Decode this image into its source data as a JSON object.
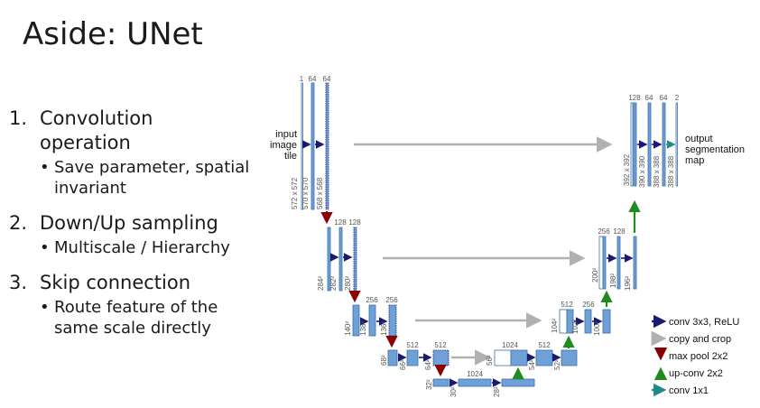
{
  "slide": {
    "title": "Aside: UNet",
    "items": [
      {
        "num": "1.",
        "text": "Convolution operation",
        "line1": "Convolution",
        "line2": "operation",
        "sub": [
          {
            "bullet": "•",
            "line1": "Save parameter, spatial",
            "line2": "invariant"
          }
        ]
      },
      {
        "num": "2.",
        "text": "Down/Up sampling",
        "sub": [
          {
            "bullet": "•",
            "line1": "Multiscale / Hierarchy"
          }
        ]
      },
      {
        "num": "3.",
        "text": "Skip connection",
        "sub": [
          {
            "bullet": "•",
            "line1": "Route feature of the",
            "line2": "same scale directly"
          }
        ]
      }
    ]
  },
  "diagram": {
    "input_label": [
      "input",
      "image",
      "tile"
    ],
    "output_label": [
      "output",
      "segmentation",
      "map"
    ],
    "channels": {
      "l1_enc": [
        "1",
        "64",
        "64"
      ],
      "l2_enc": [
        "128",
        "128"
      ],
      "l3_enc": [
        "256",
        "256"
      ],
      "l4_enc": [
        "512",
        "512"
      ],
      "l5": [
        "1024"
      ],
      "l4_dec": [
        "1024",
        "512"
      ],
      "l3_dec": [
        "512",
        "256"
      ],
      "l2_dec": [
        "256",
        "128"
      ],
      "l1_dec": [
        "128",
        "64",
        "64",
        "2"
      ]
    },
    "sizes": {
      "l1_enc": [
        "572 x 572",
        "570 x 570",
        "568 x 568"
      ],
      "l2_enc": [
        "284²",
        "282²",
        "280²"
      ],
      "l3_enc": [
        "140²",
        "138²",
        "136²"
      ],
      "l4_enc": [
        "68²",
        "66²",
        "64²"
      ],
      "l5": [
        "32²",
        "30²",
        "28²"
      ],
      "l4_dec": [
        "56²",
        "54²",
        "52²"
      ],
      "l3_dec": [
        "104²",
        "102²",
        "100²"
      ],
      "l2_dec": [
        "200²",
        "198²",
        "196²"
      ],
      "l1_dec": [
        "392 x 392",
        "390 x 390",
        "388 x 388",
        "388 x 388"
      ]
    },
    "legend": [
      {
        "label": "conv 3x3, ReLU",
        "color": "#1a1a6e",
        "kind": "right"
      },
      {
        "label": "copy and crop",
        "color": "#b0b0b0",
        "kind": "right"
      },
      {
        "label": "max pool 2x2",
        "color": "#8b0000",
        "kind": "down"
      },
      {
        "label": "up-conv 2x2",
        "color": "#1e8c1e",
        "kind": "up"
      },
      {
        "label": "conv 1x1",
        "color": "#1f8a8a",
        "kind": "right"
      }
    ],
    "colors": {
      "block": "#6fa0d8",
      "block_dark": "#3d6fa8",
      "conv": "#1a1a6e",
      "copy": "#b0b0b0",
      "pool": "#8b0000",
      "upconv": "#1e8c1e",
      "conv1x1": "#1f8a8a"
    }
  }
}
